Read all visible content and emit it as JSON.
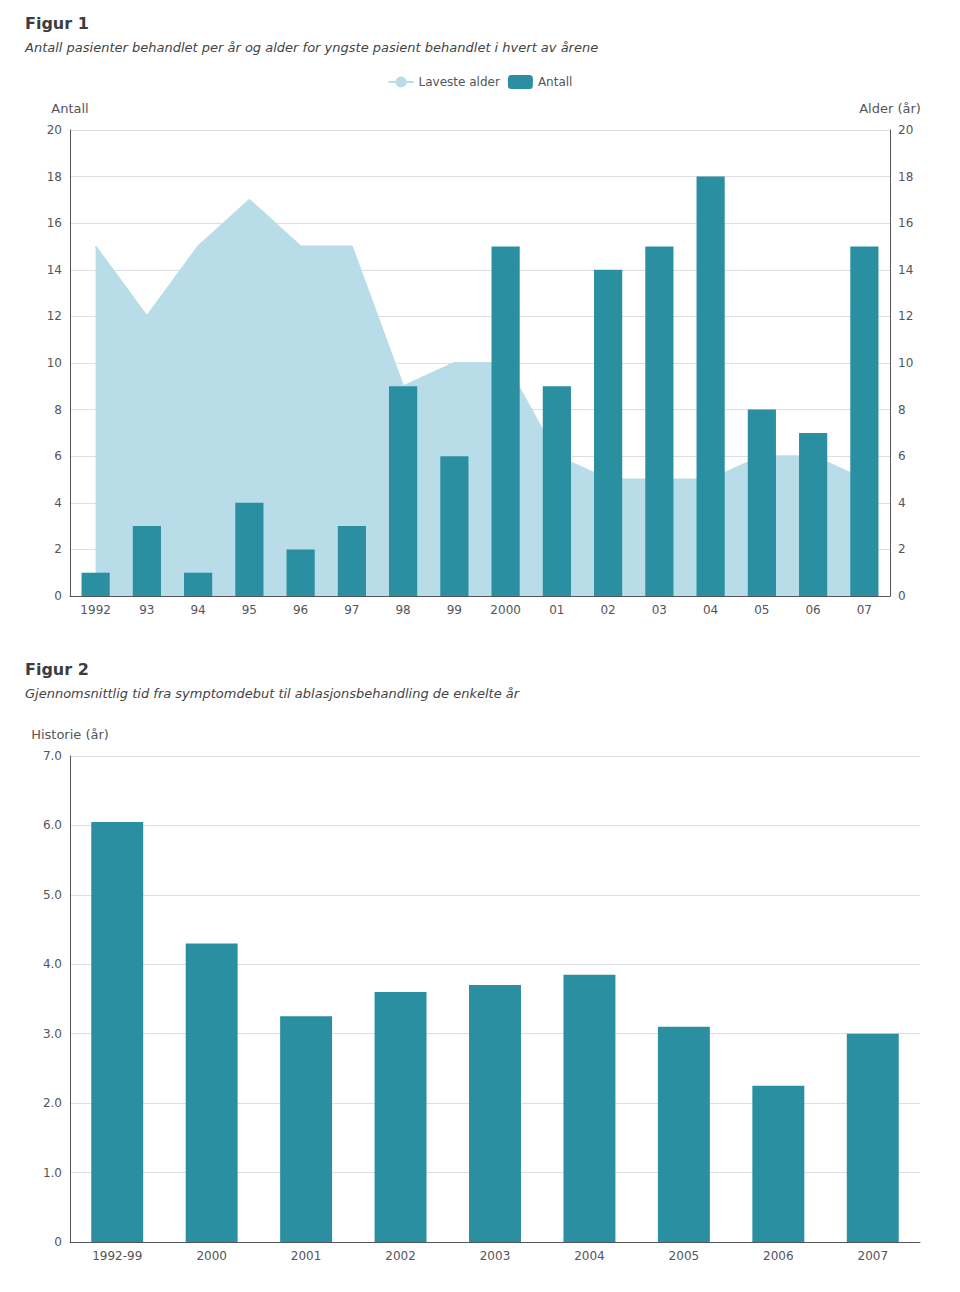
{
  "chart_data": [
    {
      "type": "bar",
      "title": "Figur 1",
      "subtitle": "Antall pasienter behandlet per år og alder for yngste pasient behandlet i hvert av årene",
      "categories": [
        "1992",
        "93",
        "94",
        "95",
        "96",
        "97",
        "98",
        "99",
        "2000",
        "01",
        "02",
        "03",
        "04",
        "05",
        "06",
        "07"
      ],
      "series": [
        {
          "name": "Laveste alder",
          "type": "area",
          "color": "#b8dde8",
          "axis": "y2",
          "values": [
            15,
            12,
            15,
            17,
            15,
            15,
            9,
            10,
            10,
            6,
            5,
            5,
            5,
            6,
            6,
            5
          ]
        },
        {
          "name": "Antall",
          "type": "bar",
          "color": "#2a8fa0",
          "values": [
            1,
            3,
            1,
            4,
            2,
            3,
            9,
            6,
            15,
            9,
            14,
            15,
            18,
            8,
            7,
            15
          ]
        }
      ],
      "ylabel": "Antall",
      "y2label": "Alder (år)",
      "ylim": [
        0,
        20
      ],
      "yticks": [
        0,
        2,
        4,
        6,
        8,
        10,
        12,
        14,
        16,
        18,
        20
      ],
      "y2lim": [
        0,
        20
      ],
      "y2ticks": [
        0,
        2,
        4,
        6,
        8,
        10,
        12,
        14,
        16,
        18,
        20
      ],
      "grid": true,
      "legend": "top"
    },
    {
      "type": "bar",
      "title": "Figur 2",
      "subtitle": "Gjennomsnittlig tid fra symptomdebut til ablasjonsbehandling de enkelte år",
      "categories": [
        "1992-99",
        "2000",
        "2001",
        "2002",
        "2003",
        "2004",
        "2005",
        "2006",
        "2007"
      ],
      "values": [
        6.05,
        4.3,
        3.25,
        3.6,
        3.7,
        3.85,
        3.1,
        2.25,
        3.0
      ],
      "color": "#2a8fa0",
      "ylabel": "Historie (år)",
      "ylim": [
        0,
        7.0
      ],
      "yticks": [
        0,
        {
          "value": 1,
          "label": "1.0"
        },
        {
          "value": 2,
          "label": "2.0"
        },
        {
          "value": 3,
          "label": "3.0"
        },
        {
          "value": 4,
          "label": "4.0"
        },
        {
          "value": 5,
          "label": "5.0"
        },
        {
          "value": 6,
          "label": "6.0"
        },
        {
          "value": 7,
          "label": "7.0"
        }
      ],
      "grid": true
    }
  ]
}
